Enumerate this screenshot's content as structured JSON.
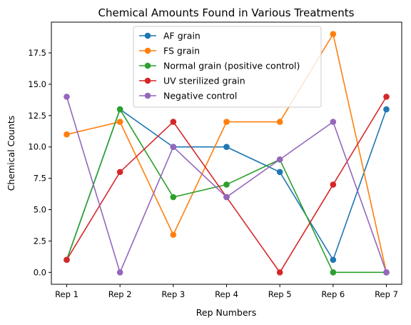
{
  "chart_data": {
    "type": "line",
    "title": "Chemical Amounts Found in Various Treatments",
    "xlabel": "Rep Numbers",
    "ylabel": "Chemical Counts",
    "categories": [
      "Rep 1",
      "Rep 2",
      "Rep 3",
      "Rep 4",
      "Rep 5",
      "Rep 6",
      "Rep 7"
    ],
    "ylim": [
      -0.95,
      19.95
    ],
    "yticks": [
      "0.0",
      "2.5",
      "5.0",
      "7.5",
      "10.0",
      "12.5",
      "15.0",
      "17.5"
    ],
    "grid": false,
    "legend_position": "top-center",
    "series": [
      {
        "name": "AF grain",
        "color": "#1f77b4",
        "values": [
          1,
          13,
          10,
          10,
          8,
          1,
          13
        ]
      },
      {
        "name": "FS grain",
        "color": "#ff7f0e",
        "values": [
          11,
          12,
          3,
          12,
          12,
          19,
          0
        ]
      },
      {
        "name": "Normal grain (positive control)",
        "color": "#2ca02c",
        "values": [
          1,
          13,
          6,
          7,
          9,
          0,
          0
        ]
      },
      {
        "name": "UV sterilized grain",
        "color": "#d62728",
        "values": [
          1,
          8,
          12,
          6,
          0,
          7,
          14
        ]
      },
      {
        "name": "Negative control",
        "color": "#9467bd",
        "values": [
          14,
          0,
          10,
          6,
          9,
          12,
          0
        ]
      }
    ]
  }
}
